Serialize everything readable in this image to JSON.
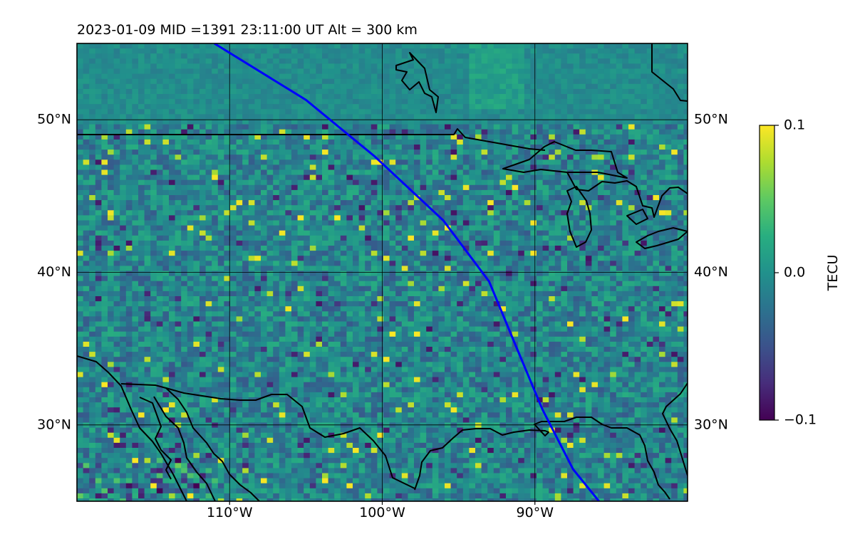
{
  "title": "2023-01-09  MID =1391    23:11:00  UT  Alt = 300 km",
  "map": {
    "lon_range": [
      -120,
      -80
    ],
    "lat_range": [
      25,
      55
    ],
    "lat_ticks": [
      {
        "value": 30,
        "label": "30°N"
      },
      {
        "value": 40,
        "label": "40°N"
      },
      {
        "value": 50,
        "label": "50°N"
      }
    ],
    "lon_ticks": [
      {
        "value": -110,
        "label": "110°W"
      },
      {
        "value": -100,
        "label": "100°W"
      },
      {
        "value": -90,
        "label": "90°W"
      }
    ],
    "gridlines": true,
    "background_colormap": "viridis",
    "track_color": "#0000ff",
    "track": [
      [
        -111.0,
        55.0
      ],
      [
        -105.0,
        51.3
      ],
      [
        -100.5,
        47.6
      ],
      [
        -96.0,
        43.4
      ],
      [
        -93.0,
        39.4
      ],
      [
        -91.3,
        35.3
      ],
      [
        -89.5,
        31.0
      ],
      [
        -87.5,
        27.1
      ],
      [
        -85.8,
        25.0
      ]
    ]
  },
  "colorbar": {
    "label": "TECU",
    "min": -0.1,
    "max": 0.1,
    "ticks": [
      {
        "value": 0.1,
        "label": "0.1"
      },
      {
        "value": 0.0,
        "label": "0.0"
      },
      {
        "value": -0.1,
        "label": "−0.1"
      }
    ]
  }
}
